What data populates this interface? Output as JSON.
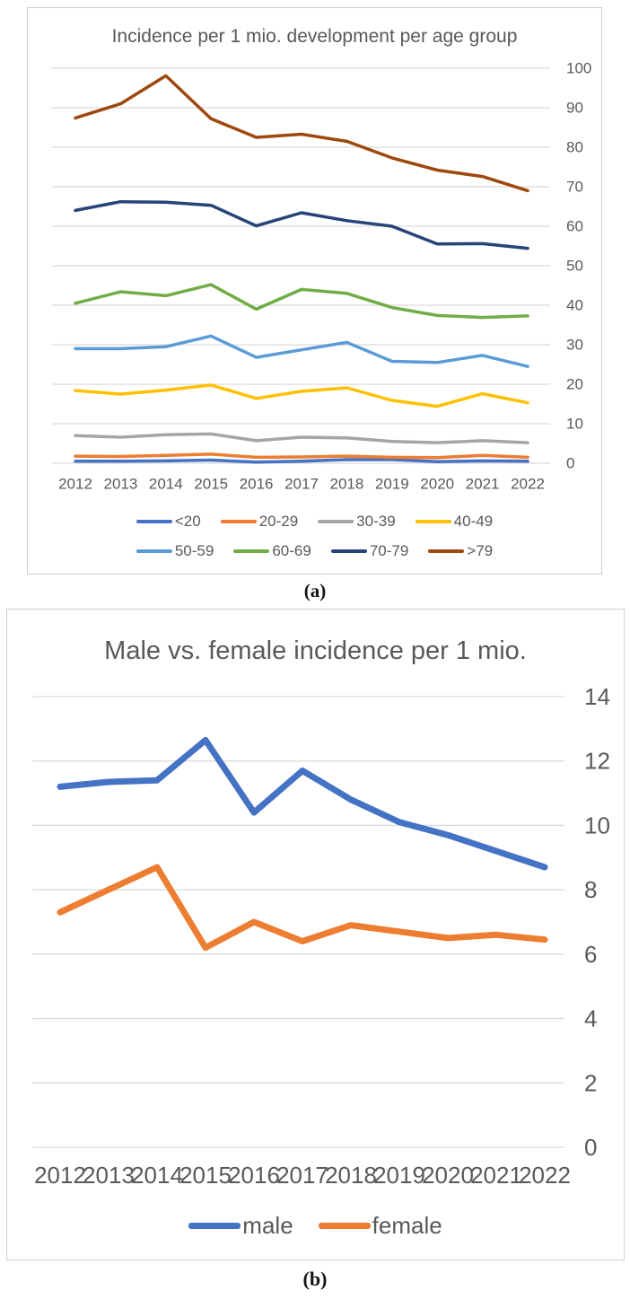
{
  "figure_labels": {
    "a": "(a)",
    "b": "(b)"
  },
  "colors": {
    "text": "#595959",
    "gridline": "#D9D9D9",
    "border": "#CFCFCF"
  },
  "chart_data": [
    {
      "type": "line",
      "title": "Incidence per 1 mio. development per age group",
      "categories": [
        "2012",
        "2013",
        "2014",
        "2015",
        "2016",
        "2017",
        "2018",
        "2019",
        "2020",
        "2021",
        "2022"
      ],
      "xlabel": "",
      "ylabel": "",
      "ylim": [
        0,
        100
      ],
      "ytick_step": 10,
      "grid": true,
      "axis_side": "right",
      "legend_position": "bottom",
      "series": [
        {
          "name": "<20",
          "color": "#4472C4",
          "values": [
            0.5,
            0.5,
            0.6,
            0.8,
            0.3,
            0.5,
            0.9,
            0.9,
            0.4,
            0.6,
            0.5
          ]
        },
        {
          "name": "20-29",
          "color": "#ED7D31",
          "values": [
            1.8,
            1.7,
            2.0,
            2.3,
            1.5,
            1.6,
            1.8,
            1.5,
            1.4,
            2.0,
            1.5
          ]
        },
        {
          "name": "30-39",
          "color": "#A5A5A5",
          "values": [
            7.0,
            6.6,
            7.2,
            7.4,
            5.7,
            6.6,
            6.4,
            5.5,
            5.2,
            5.7,
            5.2
          ]
        },
        {
          "name": "40-49",
          "color": "#FFC000",
          "values": [
            18.4,
            17.5,
            18.5,
            19.8,
            16.4,
            18.2,
            19.1,
            15.9,
            14.4,
            17.6,
            15.3
          ]
        },
        {
          "name": "50-59",
          "color": "#5B9BD5",
          "values": [
            29.0,
            29.0,
            29.5,
            32.2,
            26.8,
            28.7,
            30.6,
            25.8,
            25.5,
            27.3,
            24.5
          ]
        },
        {
          "name": "60-69",
          "color": "#70AD47",
          "values": [
            40.5,
            43.4,
            42.4,
            45.2,
            39.0,
            44.0,
            43.0,
            39.4,
            37.4,
            36.9,
            37.3
          ]
        },
        {
          "name": "70-79",
          "color": "#264478",
          "values": [
            64.0,
            66.2,
            66.1,
            65.3,
            60.1,
            63.4,
            61.4,
            60.0,
            55.5,
            55.6,
            54.4
          ]
        },
        {
          "name": ">79",
          "color": "#9E480E",
          "values": [
            87.4,
            91.0,
            98.1,
            87.2,
            82.5,
            83.3,
            81.5,
            77.3,
            74.2,
            72.6,
            69.0
          ]
        }
      ]
    },
    {
      "type": "line",
      "title": "Male vs. female incidence per 1 mio.",
      "categories": [
        "2012",
        "2013",
        "2014",
        "2015",
        "2016",
        "2017",
        "2018",
        "2019",
        "2020",
        "2021",
        "2022"
      ],
      "xlabel": "",
      "ylabel": "",
      "ylim": [
        0,
        14
      ],
      "ytick_step": 2,
      "grid": true,
      "axis_side": "right",
      "legend_position": "bottom",
      "series": [
        {
          "name": "male",
          "color": "#4472C4",
          "values": [
            11.2,
            11.35,
            11.4,
            12.65,
            10.4,
            11.7,
            10.8,
            10.1,
            9.7,
            9.2,
            8.7
          ]
        },
        {
          "name": "female",
          "color": "#ED7D31",
          "values": [
            7.3,
            8.0,
            8.7,
            6.2,
            7.0,
            6.4,
            6.9,
            6.7,
            6.5,
            6.6,
            6.45
          ]
        }
      ]
    }
  ]
}
